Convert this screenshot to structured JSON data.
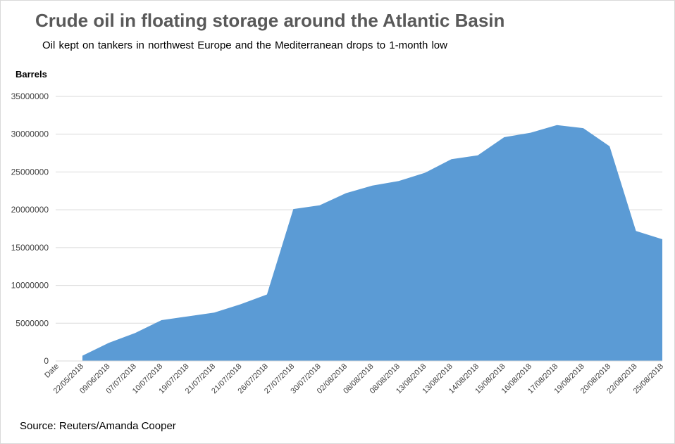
{
  "title": "Crude oil in floating storage around the Atlantic Basin",
  "subtitle": "Oil kept on tankers in northwest  Europe and the Mediterranean  drops to 1-month  low",
  "source": "Source: Reuters/Amanda Cooper",
  "chart_data": {
    "type": "area",
    "title": "Crude oil in floating storage around the Atlantic Basin",
    "subtitle": "Oil kept on tankers in northwest  Europe and the Mediterranean  drops to 1-month  low",
    "ylabel": "Barrels",
    "xlabel": "",
    "ylim": [
      0,
      35000000
    ],
    "yticks": [
      0,
      5000000,
      10000000,
      15000000,
      20000000,
      25000000,
      30000000,
      35000000
    ],
    "grid": true,
    "legend": "none",
    "color": "#5b9bd5",
    "x_header": "Date",
    "categories": [
      "22/05/2018",
      "09/06/2018",
      "07/07/2018",
      "10/07/2018",
      "19/07/2018",
      "21/07/2018",
      "21/07/2018",
      "26/07/2018",
      "27/07/2018",
      "30/07/2018",
      "02/08/2018",
      "08/08/2018",
      "08/08/2018",
      "13/08/2018",
      "13/08/2018",
      "14/08/2018",
      "15/08/2018",
      "16/08/2018",
      "17/08/2018",
      "19/08/2018",
      "20/08/2018",
      "22/08/2018",
      "25/08/2018"
    ],
    "values": [
      700000,
      2400000,
      3700000,
      5400000,
      5900000,
      6400000,
      7500000,
      8800000,
      20100000,
      20600000,
      22200000,
      23200000,
      23800000,
      24900000,
      26700000,
      27200000,
      29600000,
      30200000,
      31200000,
      30800000,
      28400000,
      17200000,
      16100000
    ]
  }
}
